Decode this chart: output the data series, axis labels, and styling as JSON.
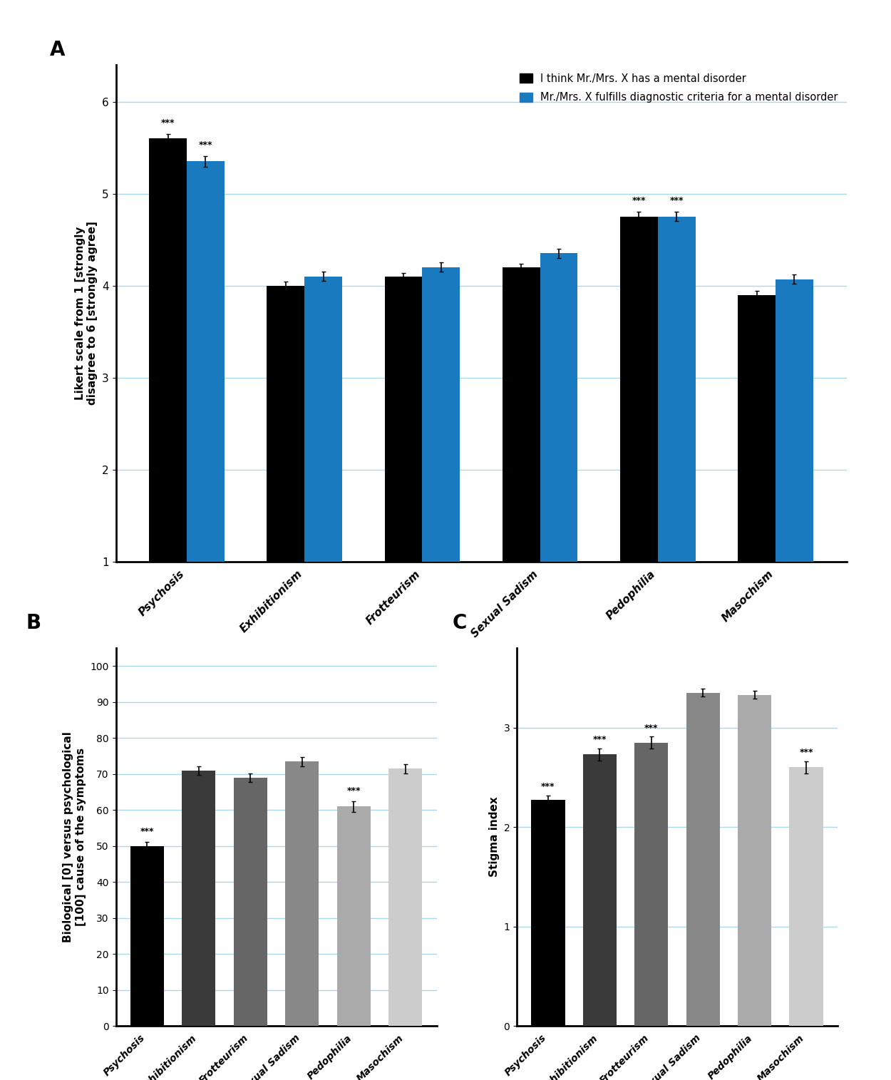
{
  "panel_A": {
    "categories": [
      "Psychosis",
      "Exhibitionism",
      "Frotteurism",
      "Sexual Sadism",
      "Pedophilia",
      "Masochism"
    ],
    "black_values": [
      5.6,
      4.0,
      4.1,
      4.2,
      4.75,
      3.9
    ],
    "blue_values": [
      5.35,
      4.1,
      4.2,
      4.35,
      4.75,
      4.07
    ],
    "black_errors": [
      0.05,
      0.04,
      0.04,
      0.04,
      0.05,
      0.04
    ],
    "blue_errors": [
      0.06,
      0.05,
      0.05,
      0.05,
      0.05,
      0.05
    ],
    "black_sig": [
      true,
      false,
      false,
      false,
      true,
      false
    ],
    "blue_sig": [
      true,
      false,
      false,
      false,
      true,
      false
    ],
    "ylim": [
      1,
      6.4
    ],
    "yticks": [
      1,
      2,
      3,
      4,
      5,
      6
    ],
    "ylabel": "Likert scale from 1 [strongly\ndisagree to 6 [strongly agree]",
    "label_A": "A",
    "legend_black": "I think Mr./Mrs. X has a mental disorder",
    "legend_blue": "Mr./Mrs. X fulfills diagnostic criteria for a mental disorder",
    "bar_color_black": "#000000",
    "bar_color_blue": "#1a7abf",
    "grid_color": "#add8e6"
  },
  "panel_B": {
    "categories": [
      "Psychosis",
      "Exhibitionism",
      "Frotteurism",
      "Sexual Sadism",
      "Pedophilia",
      "Masochism"
    ],
    "values": [
      50,
      71,
      69,
      73.5,
      61,
      71.5
    ],
    "errors": [
      1.2,
      1.2,
      1.2,
      1.3,
      1.5,
      1.3
    ],
    "sig": [
      true,
      false,
      false,
      false,
      true,
      false
    ],
    "colors": [
      "#000000",
      "#3a3a3a",
      "#666666",
      "#888888",
      "#aaaaaa",
      "#cccccc"
    ],
    "ylim": [
      0,
      105
    ],
    "yticks": [
      0,
      10,
      20,
      30,
      40,
      50,
      60,
      70,
      80,
      90,
      100
    ],
    "ylabel": "Biological [0] versus psychological\n[100] cause of the symptoms",
    "label_B": "B",
    "grid_color": "#add8e6"
  },
  "panel_C": {
    "categories": [
      "Psychosis",
      "Exhibitionism",
      "Frotteurism",
      "Sexual Sadism",
      "Pedophilia",
      "Masochism"
    ],
    "values": [
      2.27,
      2.73,
      2.85,
      3.35,
      3.33,
      2.6
    ],
    "errors": [
      0.05,
      0.06,
      0.06,
      0.04,
      0.04,
      0.06
    ],
    "sig": [
      true,
      true,
      true,
      false,
      false,
      true
    ],
    "colors": [
      "#000000",
      "#3a3a3a",
      "#666666",
      "#888888",
      "#aaaaaa",
      "#cccccc"
    ],
    "ylim": [
      0,
      3.8
    ],
    "yticks": [
      0,
      1,
      2,
      3
    ],
    "ylabel": "Stigma index",
    "label_C": "C",
    "grid_color": "#add8e6"
  }
}
